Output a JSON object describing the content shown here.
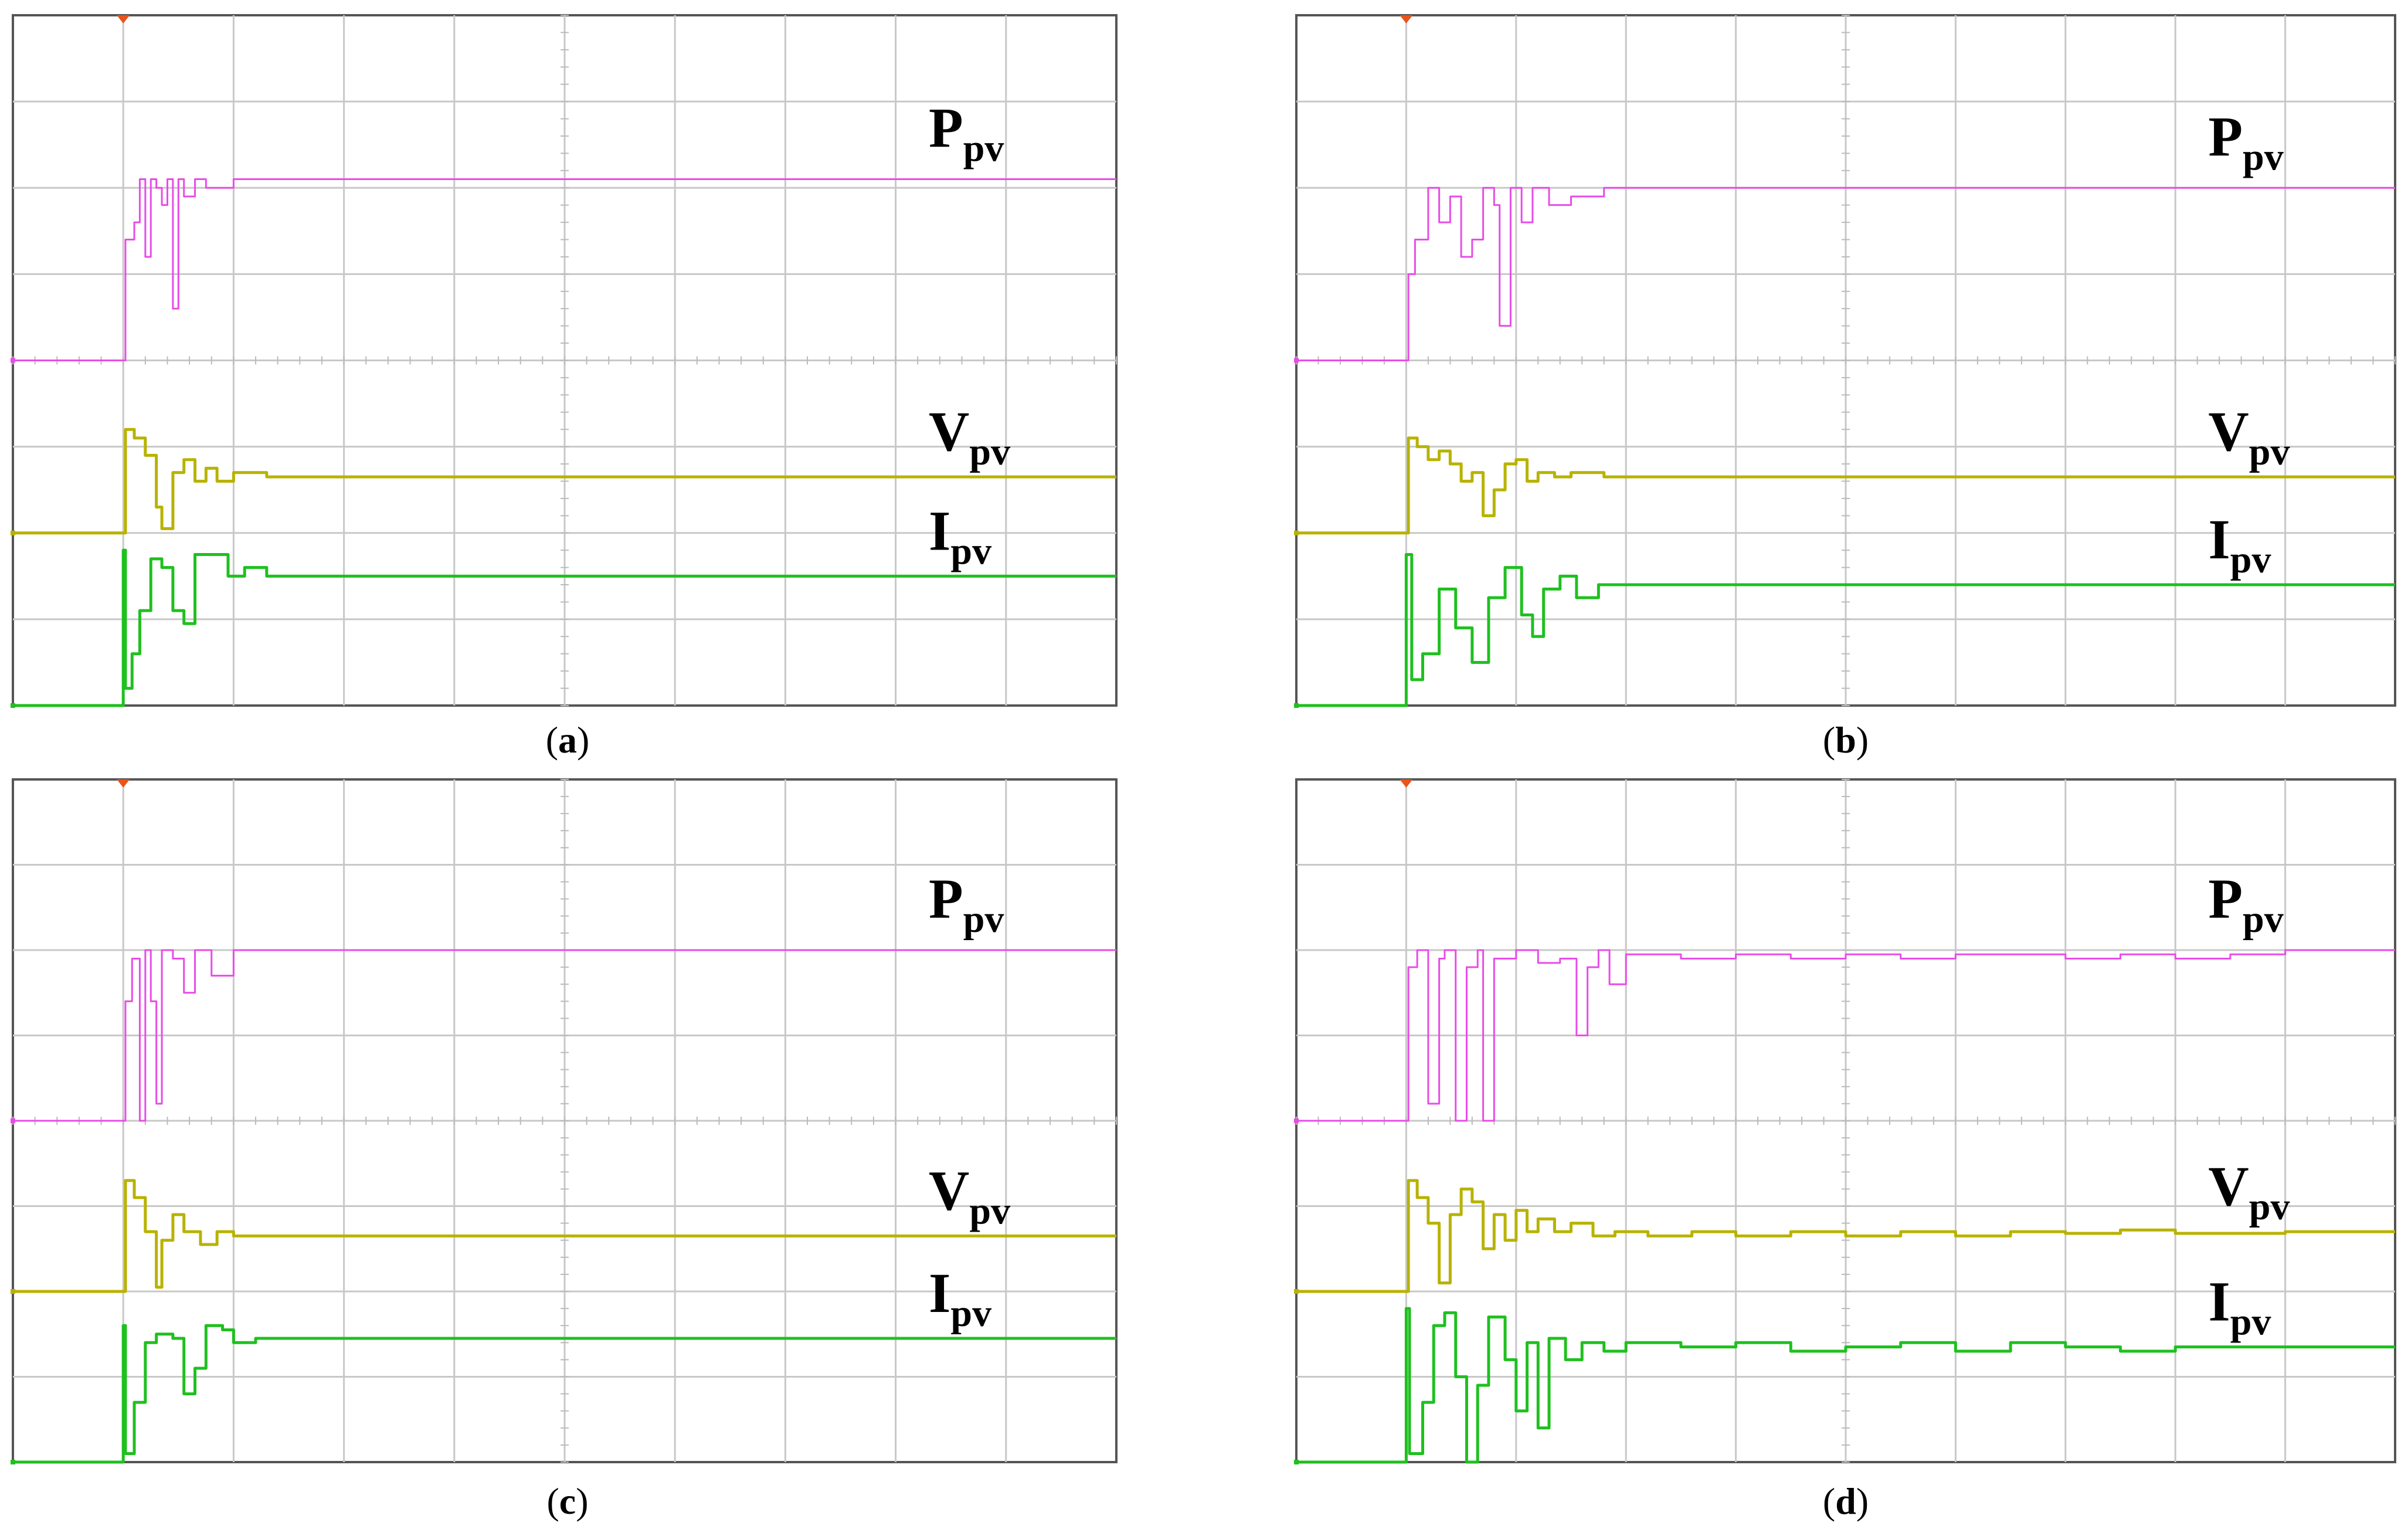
{
  "colors": {
    "power": "#e84ce8",
    "voltage": "#b8b200",
    "current": "#1fc01f",
    "grid": "#c8c8c8",
    "trigger": "#e8541c"
  },
  "chart_data": [
    {
      "type": "line",
      "caption_letter": "a",
      "labels": {
        "p_main": "P",
        "p_sub": "pv",
        "v_main": "V",
        "v_sub": "pv",
        "i_main": "I",
        "i_sub": "pv"
      },
      "grid": true,
      "series": [
        {
          "name": "Ppv",
          "color": "#e84ce8",
          "baseline": 4.0,
          "steady": 6.1,
          "x": [
            0,
            1,
            1.02,
            1.1,
            1.15,
            1.2,
            1.25,
            1.3,
            1.35,
            1.4,
            1.45,
            1.5,
            1.55,
            1.65,
            1.75,
            2.0,
            10.0
          ],
          "y": [
            4.0,
            4.0,
            5.4,
            5.6,
            6.1,
            5.2,
            6.1,
            6.0,
            5.8,
            6.1,
            4.6,
            6.1,
            5.9,
            6.1,
            6.0,
            6.1,
            6.1
          ]
        },
        {
          "name": "Vpv",
          "color": "#b8b200",
          "baseline": 2.0,
          "steady": 2.65,
          "x": [
            0,
            1,
            1.02,
            1.1,
            1.2,
            1.3,
            1.35,
            1.45,
            1.55,
            1.65,
            1.75,
            1.85,
            2.0,
            2.3,
            10.0
          ],
          "y": [
            2.0,
            2.0,
            3.2,
            3.1,
            2.9,
            2.3,
            2.05,
            2.7,
            2.85,
            2.6,
            2.75,
            2.6,
            2.7,
            2.65,
            2.65
          ]
        },
        {
          "name": "Ipv",
          "color": "#1fc01f",
          "baseline": 0.0,
          "steady": 1.5,
          "x": [
            0,
            1,
            1.0,
            1.02,
            1.08,
            1.15,
            1.25,
            1.35,
            1.45,
            1.55,
            1.65,
            1.8,
            1.95,
            2.1,
            2.3,
            10.0
          ],
          "y": [
            0.0,
            0.0,
            1.8,
            0.2,
            0.6,
            1.1,
            1.7,
            1.6,
            1.1,
            0.95,
            1.75,
            1.75,
            1.5,
            1.6,
            1.5,
            1.5
          ]
        }
      ]
    },
    {
      "type": "line",
      "caption_letter": "b",
      "labels": {
        "p_main": "P",
        "p_sub": "pv",
        "v_main": "V",
        "v_sub": "pv",
        "i_main": "I",
        "i_sub": "pv"
      },
      "grid": true,
      "series": [
        {
          "name": "Ppv",
          "color": "#e84ce8",
          "baseline": 4.0,
          "steady": 6.0,
          "x": [
            0,
            1,
            1.02,
            1.08,
            1.2,
            1.3,
            1.4,
            1.5,
            1.6,
            1.7,
            1.8,
            1.85,
            1.95,
            2.05,
            2.15,
            2.3,
            2.5,
            2.8,
            10.0
          ],
          "y": [
            4.0,
            4.0,
            5.0,
            5.4,
            6.0,
            5.6,
            5.9,
            5.2,
            5.4,
            6.0,
            5.8,
            4.4,
            6.0,
            5.6,
            6.0,
            5.8,
            5.9,
            6.0,
            6.0
          ]
        },
        {
          "name": "Vpv",
          "color": "#b8b200",
          "baseline": 2.0,
          "steady": 2.65,
          "x": [
            0,
            1,
            1.02,
            1.1,
            1.2,
            1.3,
            1.4,
            1.5,
            1.6,
            1.7,
            1.8,
            1.9,
            2.0,
            2.1,
            2.2,
            2.35,
            2.5,
            2.8,
            10.0
          ],
          "y": [
            2.0,
            2.0,
            3.1,
            3.0,
            2.85,
            2.95,
            2.8,
            2.6,
            2.7,
            2.2,
            2.5,
            2.8,
            2.85,
            2.6,
            2.7,
            2.65,
            2.7,
            2.65,
            2.65
          ]
        },
        {
          "name": "Ipv",
          "color": "#1fc01f",
          "baseline": 0.0,
          "steady": 1.4,
          "x": [
            0,
            1,
            1.0,
            1.05,
            1.15,
            1.3,
            1.45,
            1.6,
            1.75,
            1.9,
            2.05,
            2.15,
            2.25,
            2.4,
            2.55,
            2.75,
            3.0,
            10.0
          ],
          "y": [
            0.0,
            0.0,
            1.75,
            0.3,
            0.6,
            1.35,
            0.9,
            0.5,
            1.25,
            1.6,
            1.05,
            0.8,
            1.35,
            1.5,
            1.25,
            1.4,
            1.4,
            1.4
          ]
        }
      ]
    },
    {
      "type": "line",
      "caption_letter": "c",
      "labels": {
        "p_main": "P",
        "p_sub": "pv",
        "v_main": "V",
        "v_sub": "pv",
        "i_main": "I",
        "i_sub": "pv"
      },
      "grid": true,
      "series": [
        {
          "name": "Ppv",
          "color": "#e84ce8",
          "baseline": 4.0,
          "steady": 6.0,
          "x": [
            0,
            1,
            1.02,
            1.08,
            1.15,
            1.2,
            1.25,
            1.3,
            1.35,
            1.45,
            1.55,
            1.65,
            1.8,
            2.0,
            10.0
          ],
          "y": [
            4.0,
            4.0,
            5.4,
            5.9,
            4.0,
            6.0,
            5.4,
            4.2,
            6.0,
            5.9,
            5.5,
            6.0,
            5.7,
            6.0,
            6.0
          ]
        },
        {
          "name": "Vpv",
          "color": "#b8b200",
          "baseline": 2.0,
          "steady": 2.65,
          "x": [
            0,
            1,
            1.02,
            1.1,
            1.2,
            1.3,
            1.35,
            1.45,
            1.55,
            1.7,
            1.85,
            2.0,
            2.3,
            10.0
          ],
          "y": [
            2.0,
            2.0,
            3.3,
            3.1,
            2.7,
            2.05,
            2.6,
            2.9,
            2.7,
            2.55,
            2.7,
            2.65,
            2.65,
            2.65
          ]
        },
        {
          "name": "Ipv",
          "color": "#1fc01f",
          "baseline": 0.0,
          "steady": 1.45,
          "x": [
            0,
            1,
            1.0,
            1.02,
            1.1,
            1.2,
            1.3,
            1.45,
            1.55,
            1.65,
            1.75,
            1.9,
            2.0,
            2.2,
            10.0
          ],
          "y": [
            0.0,
            0.0,
            1.6,
            0.1,
            0.7,
            1.4,
            1.5,
            1.45,
            0.8,
            1.1,
            1.6,
            1.55,
            1.4,
            1.45,
            1.45
          ]
        }
      ]
    },
    {
      "type": "line",
      "caption_letter": "d",
      "labels": {
        "p_main": "P",
        "p_sub": "pv",
        "v_main": "V",
        "v_sub": "pv",
        "i_main": "I",
        "i_sub": "pv"
      },
      "grid": true,
      "series": [
        {
          "name": "Ppv",
          "color": "#e84ce8",
          "baseline": 4.0,
          "steady": 6.0,
          "x": [
            0,
            1,
            1.02,
            1.1,
            1.2,
            1.3,
            1.35,
            1.45,
            1.55,
            1.65,
            1.7,
            1.8,
            2.0,
            2.2,
            2.4,
            2.55,
            2.65,
            2.75,
            2.85,
            3.0,
            3.5,
            4.0,
            4.5,
            5.0,
            5.5,
            6.0,
            6.5,
            7.0,
            7.5,
            8.0,
            8.5,
            9.0,
            10.0
          ],
          "y": [
            4.0,
            4.0,
            5.8,
            6.0,
            4.2,
            5.9,
            6.0,
            4.0,
            5.8,
            6.0,
            4.0,
            5.9,
            6.0,
            5.85,
            5.9,
            5.0,
            5.8,
            6.0,
            5.6,
            5.95,
            5.9,
            5.95,
            5.9,
            5.95,
            5.9,
            5.95,
            5.95,
            5.9,
            5.95,
            5.9,
            5.95,
            6.0,
            6.0
          ]
        },
        {
          "name": "Vpv",
          "color": "#b8b200",
          "baseline": 2.0,
          "steady": 2.7,
          "x": [
            0,
            1,
            1.02,
            1.1,
            1.2,
            1.3,
            1.4,
            1.5,
            1.6,
            1.7,
            1.8,
            1.9,
            2.0,
            2.1,
            2.2,
            2.35,
            2.5,
            2.7,
            2.9,
            3.2,
            3.6,
            4.0,
            4.5,
            5.0,
            5.5,
            6.0,
            6.5,
            7.0,
            7.5,
            8.0,
            9.0,
            10.0
          ],
          "y": [
            2.0,
            2.0,
            3.3,
            3.1,
            2.8,
            2.1,
            2.9,
            3.2,
            3.05,
            2.5,
            2.9,
            2.6,
            2.95,
            2.7,
            2.85,
            2.7,
            2.8,
            2.65,
            2.7,
            2.65,
            2.7,
            2.65,
            2.7,
            2.65,
            2.7,
            2.65,
            2.7,
            2.68,
            2.72,
            2.68,
            2.7,
            2.7
          ]
        },
        {
          "name": "Ipv",
          "color": "#1fc01f",
          "baseline": 0.0,
          "steady": 1.35,
          "x": [
            0,
            1,
            1.0,
            1.03,
            1.15,
            1.25,
            1.35,
            1.45,
            1.55,
            1.65,
            1.75,
            1.9,
            2.0,
            2.1,
            2.2,
            2.3,
            2.45,
            2.6,
            2.8,
            3.0,
            3.5,
            4.0,
            4.5,
            5.0,
            5.5,
            6.0,
            6.5,
            7.0,
            7.5,
            8.0,
            9.0,
            10.0
          ],
          "y": [
            0.0,
            0.0,
            1.8,
            0.1,
            0.7,
            1.6,
            1.75,
            1.0,
            0.0,
            0.9,
            1.7,
            1.2,
            0.6,
            1.4,
            0.4,
            1.45,
            1.2,
            1.4,
            1.3,
            1.4,
            1.35,
            1.4,
            1.3,
            1.35,
            1.4,
            1.3,
            1.4,
            1.35,
            1.3,
            1.35,
            1.35,
            1.35
          ]
        }
      ]
    }
  ]
}
